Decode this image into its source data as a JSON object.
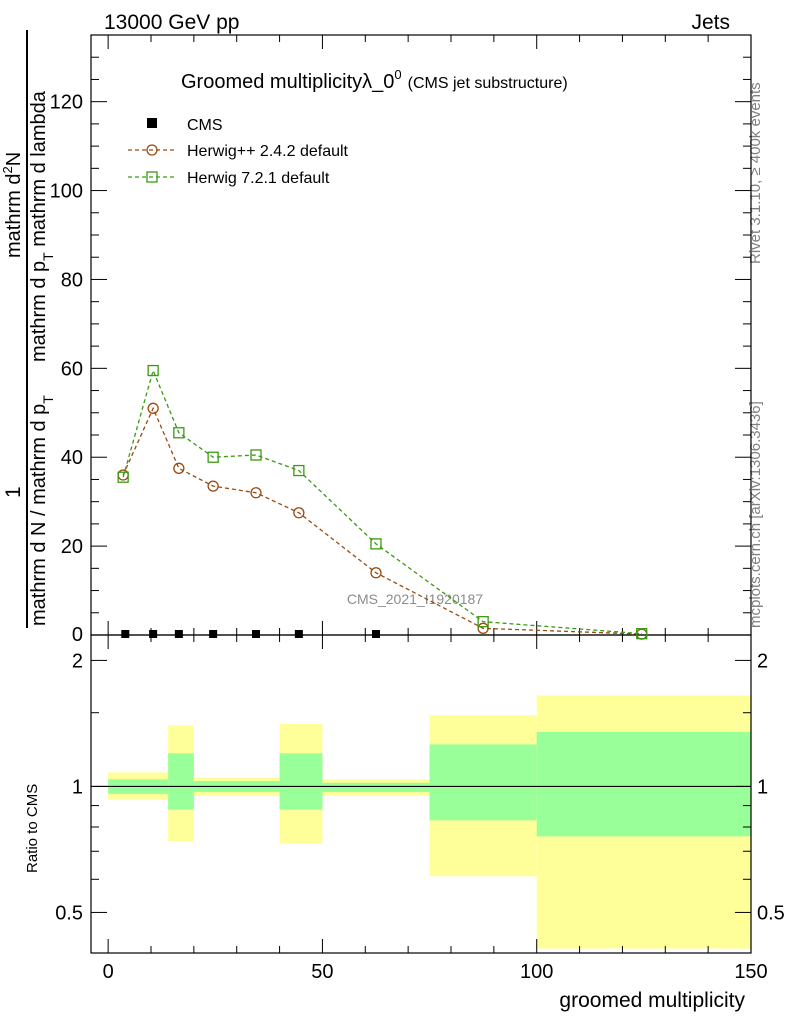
{
  "header": {
    "left": "13000 GeV pp",
    "right": "Jets"
  },
  "side_notes": {
    "rivet": "Rivet 3.1.10, ≥ 400k events",
    "site": "mcplots.cern.ch [arXiv:1306.3436]"
  },
  "watermark": "CMS_2021_I1920187",
  "colors": {
    "cms": "#000000",
    "herwig_pp": "#9a4a10",
    "herwig7": "#3a9a10",
    "band_outer": "#ffff99",
    "band_inner": "#99ff99"
  },
  "chart_data": [
    {
      "type": "line",
      "title": "Groomed multiplicityλ_0",
      "title_sup": "0",
      "subtitle": "(CMS jet substructure)",
      "xlabel": "groomed multiplicity",
      "ylabel_num": "1",
      "ylabel_den": "mathrm d N / mathrm d p",
      "ylabel_den_sub": "T",
      "ylabel_num2": "mathrm d",
      "ylabel_num2_sup": "2",
      "ylabel_num2_rest": "N",
      "ylabel_den2": "mathrm d p",
      "ylabel_den2_sub": "T",
      "ylabel_den2_rest": " mathrm d lambda",
      "xlim": [
        -4,
        150
      ],
      "ylim": [
        0,
        135
      ],
      "yticks": [
        20,
        40,
        60,
        80,
        100,
        120
      ],
      "ytick_labels": [
        "20",
        "40",
        "60",
        "80",
        "100",
        "120"
      ],
      "y_zero_label": "0",
      "series": [
        {
          "name": "CMS",
          "x": [
            4,
            10.5,
            16.5,
            24.5,
            34.5,
            44.5,
            62.5
          ],
          "values": [
            0,
            0,
            0,
            0,
            0,
            0,
            0
          ]
        },
        {
          "name": "Herwig++ 2.4.2 default",
          "x": [
            3.5,
            10.5,
            16.5,
            24.5,
            34.5,
            44.5,
            62.5,
            87.5,
            124.5
          ],
          "values": [
            36,
            51,
            37.5,
            33.5,
            32,
            27.5,
            14,
            1.5,
            0.2
          ]
        },
        {
          "name": "Herwig 7.2.1 default",
          "x": [
            3.5,
            10.5,
            16.5,
            24.5,
            34.5,
            44.5,
            62.5,
            87.5,
            124.5
          ],
          "values": [
            35.5,
            59.5,
            45.5,
            40,
            40.5,
            37,
            20.5,
            3,
            0.3
          ]
        }
      ]
    },
    {
      "type": "area",
      "ylabel": "Ratio to CMS",
      "xlim": [
        -4,
        150
      ],
      "ylim": [
        0.4,
        2.3
      ],
      "yticks": [
        0.5,
        1,
        2
      ],
      "ytick_labels": [
        "0.5",
        "1",
        "2"
      ],
      "xticks": [
        0,
        50,
        100,
        150
      ],
      "xtick_labels": [
        "0",
        "50",
        "100",
        "150"
      ],
      "bins": [
        {
          "x0": 0,
          "x1": 14,
          "outer": [
            0.93,
            1.08
          ],
          "inner": [
            0.96,
            1.04
          ]
        },
        {
          "x0": 14,
          "x1": 20,
          "outer": [
            0.74,
            1.4
          ],
          "inner": [
            0.88,
            1.2
          ]
        },
        {
          "x0": 20,
          "x1": 40,
          "outer": [
            0.95,
            1.05
          ],
          "inner": [
            0.97,
            1.03
          ]
        },
        {
          "x0": 40,
          "x1": 50,
          "outer": [
            0.73,
            1.41
          ],
          "inner": [
            0.88,
            1.2
          ]
        },
        {
          "x0": 50,
          "x1": 75,
          "outer": [
            0.95,
            1.04
          ],
          "inner": [
            0.97,
            1.02
          ]
        },
        {
          "x0": 75,
          "x1": 100,
          "outer": [
            0.61,
            1.48
          ],
          "inner": [
            0.83,
            1.26
          ]
        },
        {
          "x0": 100,
          "x1": 150,
          "outer": [
            0.41,
            1.65
          ],
          "inner": [
            0.76,
            1.35
          ]
        }
      ]
    }
  ]
}
